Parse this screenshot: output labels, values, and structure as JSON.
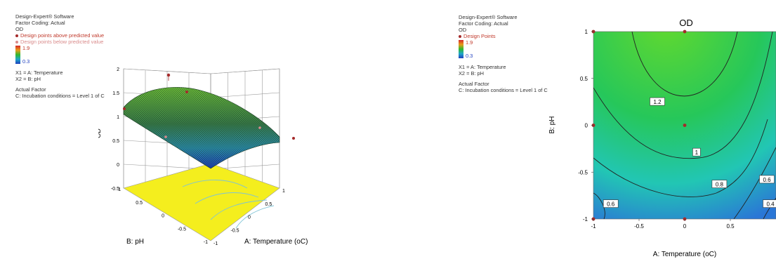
{
  "left_panel": {
    "software": "Design-Expert® Software",
    "factor_coding": "Factor Coding: Actual",
    "response": "OD",
    "legend_above": "Design points above predicted value",
    "legend_below": "Design points below predicted value",
    "color_max": "1.9",
    "color_min": "0.3",
    "x1": "X1 = A: Temperature",
    "x2": "X2 = B: pH",
    "actual_factor_title": "Actual Factor",
    "actual_factor": "C: Incubation conditions = Level 1 of C"
  },
  "right_panel": {
    "software": "Design-Expert® Software",
    "factor_coding": "Factor Coding: Actual",
    "response": "OD",
    "legend_points": "Design Points",
    "color_max": "1.9",
    "color_min": "0.3",
    "x1": "X1 = A: Temperature",
    "x2": "X2 = B: pH",
    "actual_factor_title": "Actual Factor",
    "actual_factor": "C: Incubation conditions = Level 1 of C"
  },
  "colors": {
    "high": "#d62728",
    "mid": "#2fb82f",
    "low": "#1f3fbf",
    "design_point": "#a52a2a",
    "floor": "#f4ee1e"
  },
  "chart_data": [
    {
      "type": "surface",
      "xlabel": "A: Temperature (oC)",
      "ylabel": "B: pH",
      "zlabel": "OD",
      "xlim": [
        -1,
        1
      ],
      "ylim": [
        -1,
        1
      ],
      "zlim": [
        -0.5,
        2
      ],
      "x_ticks": [
        "-1",
        "-0.5",
        "0",
        "0.5",
        "1"
      ],
      "y_ticks": [
        "-1",
        "-0.5",
        "0",
        "0.5",
        "1"
      ],
      "z_ticks": [
        "-0.5",
        "0",
        "0.5",
        "1",
        "1.5",
        "2"
      ],
      "design_points": [
        {
          "A": -1,
          "B": 1,
          "OD": 1.0
        },
        {
          "A": 0,
          "B": 1,
          "OD": 1.55
        },
        {
          "A": 1,
          "B": -1,
          "OD": 0.3
        },
        {
          "A": -1,
          "B": -1,
          "OD": 0.8
        },
        {
          "A": 0,
          "B": 0,
          "OD": 1.1
        }
      ]
    },
    {
      "type": "contour",
      "title": "OD",
      "xlabel": "A: Temperature (oC)",
      "ylabel": "B: pH",
      "xlim": [
        -1,
        1
      ],
      "ylim": [
        -1,
        1
      ],
      "x_ticks": [
        "-1",
        "-0.5",
        "0",
        "0.5",
        "1"
      ],
      "y_ticks": [
        "-1",
        "-0.5",
        "0",
        "0.5",
        "1"
      ],
      "contour_levels": [
        0.4,
        0.6,
        0.8,
        1.0,
        1.2
      ],
      "contour_labels": [
        {
          "text": "1.2",
          "A": -0.3,
          "B": 0.25
        },
        {
          "text": "1",
          "A": 0.13,
          "B": -0.29
        },
        {
          "text": "0.8",
          "A": 0.38,
          "B": -0.63
        },
        {
          "text": "0.6",
          "A": 0.9,
          "B": -0.58
        },
        {
          "text": "0.6",
          "A": -0.81,
          "B": -0.84
        },
        {
          "text": "0.4",
          "A": 0.99,
          "B": -0.84
        }
      ],
      "design_points": [
        {
          "A": -1,
          "B": 1
        },
        {
          "A": 0,
          "B": 1
        },
        {
          "A": -1,
          "B": 0
        },
        {
          "A": 0,
          "B": 0
        },
        {
          "A": 0,
          "B": -1
        },
        {
          "A": -1,
          "B": -1
        }
      ]
    }
  ]
}
